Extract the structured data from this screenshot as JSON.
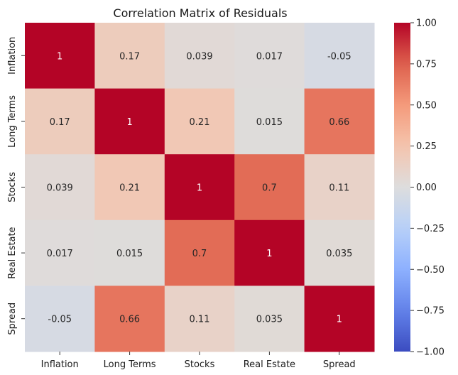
{
  "chart_data": {
    "type": "heatmap",
    "title": "Correlation Matrix of Residuals",
    "xlabel": "",
    "ylabel": "",
    "x_categories": [
      "Inflation",
      "Long Terms",
      "Stocks",
      "Real Estate",
      "Spread"
    ],
    "y_categories": [
      "Inflation",
      "Long Terms",
      "Stocks",
      "Real Estate",
      "Spread"
    ],
    "values": [
      [
        1,
        0.17,
        0.039,
        0.017,
        -0.05
      ],
      [
        0.17,
        1,
        0.21,
        0.015,
        0.66
      ],
      [
        0.039,
        0.21,
        1,
        0.7,
        0.11
      ],
      [
        0.017,
        0.015,
        0.7,
        1,
        0.035
      ],
      [
        -0.05,
        0.66,
        0.11,
        0.035,
        1
      ]
    ],
    "value_labels": [
      [
        "1",
        "0.17",
        "0.039",
        "0.017",
        "-0.05"
      ],
      [
        "0.17",
        "1",
        "0.21",
        "0.015",
        "0.66"
      ],
      [
        "0.039",
        "0.21",
        "1",
        "0.7",
        "0.11"
      ],
      [
        "0.017",
        "0.015",
        "0.7",
        "1",
        "0.035"
      ],
      [
        "-0.05",
        "0.66",
        "0.11",
        "0.035",
        "1"
      ]
    ],
    "colormap": "coolwarm",
    "vmin": -1,
    "vmax": 1,
    "colorbar_ticks": [
      1.0,
      0.75,
      0.5,
      0.25,
      0.0,
      -0.25,
      -0.5,
      -0.75,
      -1.0
    ],
    "colorbar_tick_labels": [
      "1.00",
      "0.75",
      "0.50",
      "0.25",
      "0.00",
      "−0.25",
      "−0.50",
      "−0.75",
      "−1.00"
    ],
    "colorbar_placement": "right",
    "grid": false
  }
}
